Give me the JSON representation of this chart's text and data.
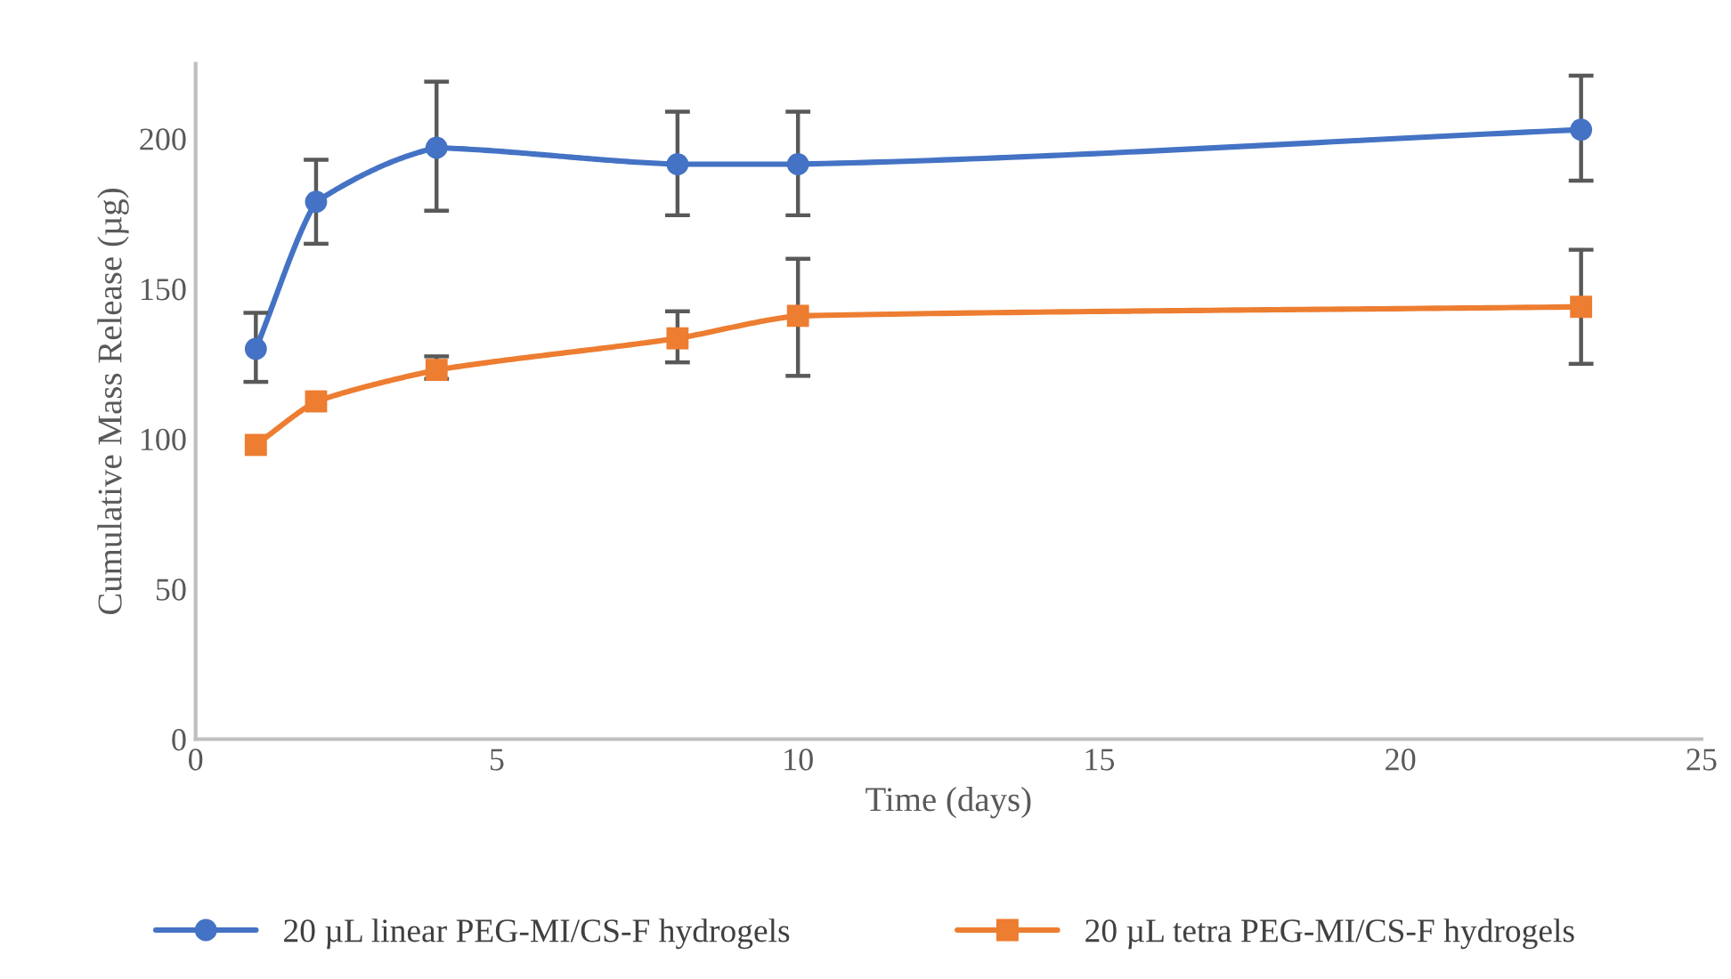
{
  "chart_data": {
    "type": "line",
    "xlabel": "Time (days)",
    "ylabel": "Cumulative Mass Release (µg)",
    "x": [
      1,
      2,
      4,
      8,
      10,
      23
    ],
    "series": [
      {
        "name": "20 µL linear PEG-MI/CS-F hydrogels",
        "color": "#4472c4",
        "marker": "circle",
        "values": [
          130,
          179,
          197,
          191.5,
          191.5,
          203
        ],
        "errors": [
          [
            119,
            142
          ],
          [
            165,
            193
          ],
          [
            176,
            219
          ],
          [
            174.5,
            209
          ],
          [
            174.5,
            209
          ],
          [
            186,
            221
          ]
        ]
      },
      {
        "name": "20 µL tetra PEG-MI/CS-F hydrogels",
        "color": "#ed7d31",
        "marker": "square",
        "values": [
          98,
          112.5,
          123,
          133.5,
          141,
          144
        ],
        "errors": [
          null,
          null,
          [
            120,
            127.5
          ],
          [
            125.5,
            142.5
          ],
          [
            121,
            160
          ],
          [
            125,
            163
          ]
        ]
      }
    ],
    "xlim": [
      0,
      25
    ],
    "xticks": [
      0,
      5,
      10,
      15,
      20,
      25
    ],
    "ylim": [
      0,
      225
    ],
    "yticks": [
      0,
      50,
      100,
      150,
      200
    ],
    "grid": false,
    "legend": "bottom",
    "line_style": "solid"
  }
}
